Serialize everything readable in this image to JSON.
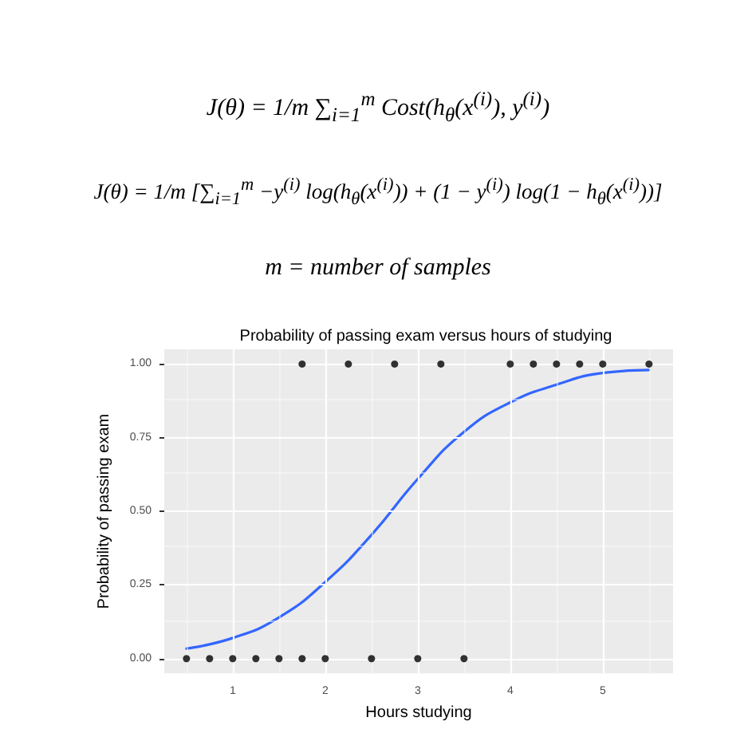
{
  "chart_data": {
    "type": "scatter",
    "title": "Probability of passing exam versus hours of studying",
    "xlabel": "Hours studying",
    "ylabel": "Probability of passing exam",
    "annotations": [
      "J(θ) = 1/m ∑$_{i=1}$$^{m}$ Cost(h$_{θ}$(x$^{(i)}$), y$^{(i)}$)",
      "J(θ) = 1/m [∑$_{i=1}$$^{m}$ −y$^{(i)}$ log(h$_{θ}$(x$^{(i)}$)) + (1 − y$^{(i)}$) log(1 − h$_{θ}$(x$^{(i)}$))]",
      "m = number of samples"
    ],
    "series": [
      {
        "color": "#000000",
        "marker": "circle",
        "x": [
          0.5,
          0.75,
          1,
          1.25,
          1.5,
          1.75,
          1.75,
          2,
          2.25,
          2.5,
          2.75,
          3,
          3.25,
          3.5,
          4,
          4.25,
          4.5,
          4.75,
          5,
          5.5
        ],
        "values": [
          0,
          0,
          0,
          0,
          0,
          0,
          1,
          0,
          1,
          0,
          1,
          0,
          1,
          0,
          1,
          1,
          1,
          1,
          1,
          1
        ]
      },
      {
        "type": "line",
        "color": "#3366ff",
        "marker": "none",
        "x": [
          0.5,
          1,
          1.5,
          2,
          2.5,
          3,
          3.5,
          4,
          4.5,
          5,
          5.5
        ],
        "values": [
          0.034,
          0.07,
          0.14,
          0.26,
          0.42,
          0.61,
          0.77,
          0.87,
          0.93,
          0.97,
          0.98
        ]
      }
    ],
    "xlim": [
      0.26,
      5.76
    ],
    "ylim": [
      -0.05,
      1.05
    ],
    "xticks": [
      1,
      2,
      3,
      4,
      5
    ],
    "yticks": [
      {
        "value": 0,
        "label": "0.00"
      },
      {
        "value": 0.25,
        "label": "0.25"
      },
      {
        "value": 0.5,
        "label": "0.50"
      },
      {
        "value": 0.75,
        "label": "0.75"
      },
      {
        "value": 1,
        "label": "1.00"
      }
    ],
    "grid": true
  }
}
